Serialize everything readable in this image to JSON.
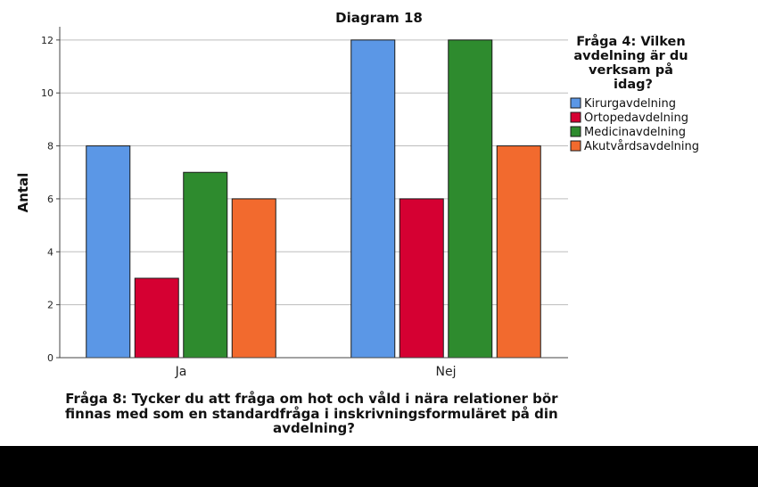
{
  "chart_data": {
    "type": "bar",
    "title": "Diagram 18",
    "xlabel": "Fråga 8: Tycker du att fråga om hot och våld i nära relationer bör finnas med som en standardfråga i inskrivningsformuläret på din avdelning?",
    "xlabel_lines": [
      "Fråga 8: Tycker du att fråga om hot och våld i nära relationer bör",
      "finnas med som en standardfråga i inskrivningsformuläret på din",
      "avdelning?"
    ],
    "ylabel": "Antal",
    "ylim": [
      0,
      12.5
    ],
    "yticks": [
      0,
      2,
      4,
      6,
      8,
      10,
      12
    ],
    "grid": true,
    "categories": [
      "Ja",
      "Nej"
    ],
    "series": [
      {
        "name": "Kirurgavdelning",
        "color": "#5b97e6",
        "values": [
          8,
          12
        ]
      },
      {
        "name": "Ortopedavdelning",
        "color": "#d50032",
        "values": [
          3,
          6
        ]
      },
      {
        "name": "Medicinavdelning",
        "color": "#2e8b2e",
        "values": [
          7,
          12
        ]
      },
      {
        "name": "Akutvårdsavdelning",
        "color": "#f26a2e",
        "values": [
          6,
          8
        ]
      }
    ],
    "legend": {
      "title": "Fråga 4: Vilken avdelning är du verksam på idag?",
      "title_lines": [
        "Fråga 4: Vilken",
        "avdelning är du",
        "verksam på",
        "idag?"
      ],
      "position": "right"
    }
  }
}
